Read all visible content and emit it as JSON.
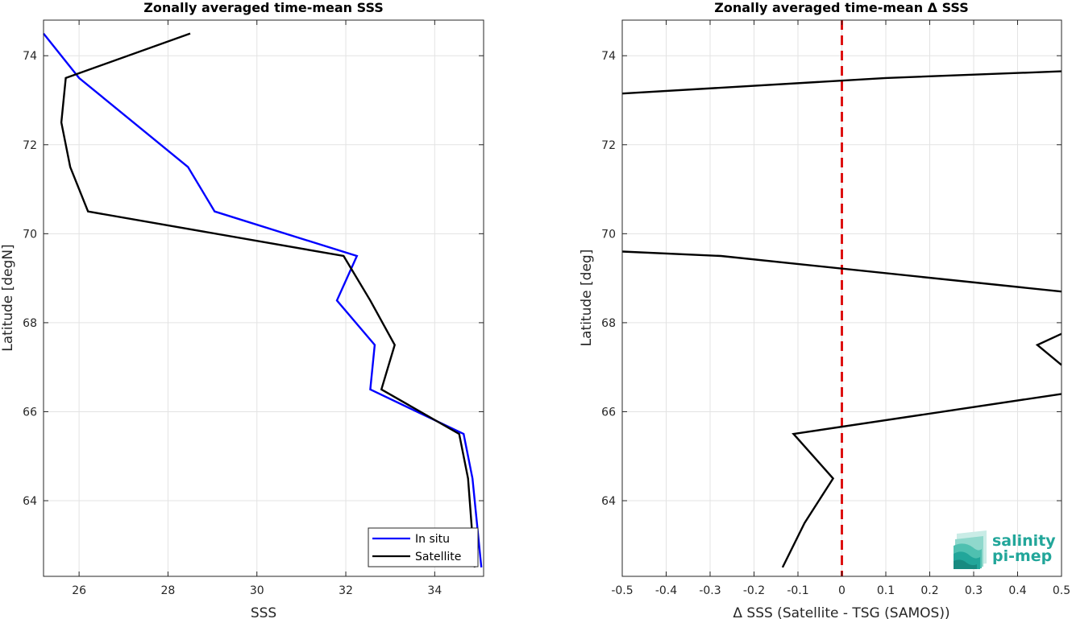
{
  "chart_data": [
    {
      "type": "line",
      "title": "Zonally averaged time-mean SSS",
      "xlabel": "SSS",
      "ylabel": "Latitude [degN]",
      "xlim": [
        25.2,
        35.1
      ],
      "ylim": [
        62.3,
        74.8
      ],
      "xticks": [
        26,
        28,
        30,
        32,
        34
      ],
      "yticks": [
        64,
        66,
        68,
        70,
        72,
        74
      ],
      "grid": true,
      "legend_placement": "bottom-right",
      "series": [
        {
          "name": "In situ",
          "color": "#0000ff",
          "points": [
            [
              25.2,
              74.5
            ],
            [
              26.0,
              73.5
            ],
            [
              28.45,
              71.5
            ],
            [
              29.05,
              70.5
            ],
            [
              32.25,
              69.5
            ],
            [
              31.8,
              68.5
            ],
            [
              32.65,
              67.5
            ],
            [
              32.55,
              66.5
            ],
            [
              34.65,
              65.5
            ],
            [
              34.85,
              64.5
            ],
            [
              35.05,
              62.5
            ]
          ]
        },
        {
          "name": "Satellite",
          "color": "#000000",
          "points": [
            [
              28.5,
              74.5
            ],
            [
              25.7,
              73.5
            ],
            [
              25.6,
              72.5
            ],
            [
              25.8,
              71.5
            ],
            [
              26.2,
              70.5
            ],
            [
              31.95,
              69.5
            ],
            [
              32.55,
              68.5
            ],
            [
              33.1,
              67.5
            ],
            [
              32.8,
              66.5
            ],
            [
              34.55,
              65.5
            ],
            [
              34.75,
              64.5
            ],
            [
              34.9,
              62.5
            ]
          ]
        }
      ]
    },
    {
      "type": "line",
      "title": "Zonally averaged time-mean Δ SSS",
      "xlabel": "Δ SSS (Satellite - TSG (SAMOS))",
      "ylabel": "Latitude [deg]",
      "xlim": [
        -0.5,
        0.5
      ],
      "ylim": [
        62.3,
        74.8
      ],
      "xticks": [
        -0.5,
        -0.4,
        -0.3,
        -0.2,
        -0.1,
        0,
        0.1,
        0.2,
        0.3,
        0.4,
        0.5
      ],
      "xticklabels": [
        "-0.5",
        "-0.4",
        "-0.3",
        "-0.2",
        "-0.1",
        "0",
        "0.1",
        "0.2",
        "0.3",
        "0.4",
        "0.5"
      ],
      "yticks": [
        64,
        66,
        68,
        70,
        72,
        74
      ],
      "grid": true,
      "reference_line": {
        "x": 0,
        "color": "#dd1111",
        "style": "dashed"
      },
      "series": [
        {
          "color": "#000000",
          "points": [
            [
              -0.135,
              62.5
            ],
            [
              -0.085,
              63.5
            ],
            [
              -0.02,
              64.5
            ],
            [
              -0.11,
              65.5
            ],
            [
              0.5,
              66.4
            ],
            [
              null,
              null
            ],
            [
              0.5,
              67.05
            ],
            [
              0.445,
              67.5
            ],
            [
              0.5,
              67.75
            ],
            [
              null,
              null
            ],
            [
              0.5,
              68.7
            ],
            [
              -0.275,
              69.5
            ],
            [
              -0.5,
              69.6
            ],
            [
              null,
              null
            ],
            [
              -0.5,
              73.15
            ],
            [
              0.1,
              73.5
            ],
            [
              0.5,
              73.65
            ]
          ]
        }
      ]
    }
  ],
  "logo": {
    "line1": "salinity",
    "line2": "pi-mep"
  }
}
